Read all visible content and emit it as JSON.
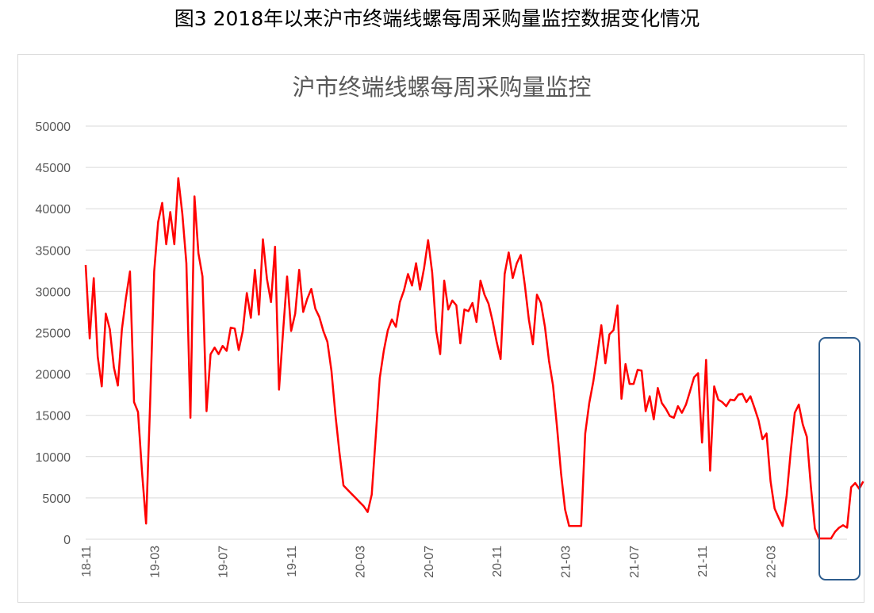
{
  "caption": "图3  2018年以来沪市终端线螺每周采购量监控数据变化情况",
  "chart_data": {
    "type": "line",
    "title": "沪市终端线螺每周采购量监控",
    "x_tick_labels": [
      "18-11",
      "19-03",
      "19-07",
      "19-11",
      "20-03",
      "20-07",
      "20-11",
      "21-03",
      "21-07",
      "21-11",
      "22-03"
    ],
    "x_tick_week_index": [
      0,
      17,
      34,
      51,
      68,
      85,
      102,
      119,
      136,
      153,
      170
    ],
    "ylim": [
      0,
      50000
    ],
    "yticks": [
      0,
      5000,
      10000,
      15000,
      20000,
      25000,
      30000,
      35000,
      40000,
      45000,
      50000
    ],
    "grid": true,
    "legend": "none",
    "color": "#ff0000",
    "series": [
      {
        "values": [
          33200,
          24300,
          31600,
          22100,
          18500,
          27300,
          25400,
          20800,
          18600,
          25400,
          29200,
          32400,
          16600,
          15400,
          8100,
          1900,
          16500,
          32400,
          38400,
          40700,
          35700,
          39600,
          35700,
          43700,
          39400,
          33400,
          14700,
          41500,
          34600,
          31800,
          15500,
          22400,
          23200,
          22400,
          23400,
          22800,
          25600,
          25500,
          22900,
          25200,
          29800,
          26800,
          32600,
          27200,
          36300,
          31500,
          28700,
          35400,
          18100,
          25100,
          31800,
          25200,
          27300,
          32600,
          27500,
          29100,
          30300,
          27900,
          26900,
          25200,
          23900,
          20400,
          15000,
          10500,
          6500,
          6000,
          5500,
          5000,
          4500,
          4000,
          3300,
          5400,
          12500,
          19500,
          22800,
          25300,
          26600,
          25700,
          28700,
          30100,
          32100,
          30700,
          33400,
          30200,
          32800,
          36200,
          32300,
          25200,
          22400,
          31300,
          27800,
          28900,
          28300,
          23700,
          27800,
          27600,
          28600,
          26300,
          31300,
          29600,
          28500,
          26400,
          23900,
          21800,
          32100,
          34700,
          31600,
          33400,
          34400,
          30800,
          26600,
          23600,
          29600,
          28600,
          25700,
          21600,
          18600,
          13500,
          8000,
          3600,
          1600,
          1600,
          1600,
          1600,
          12800,
          16500,
          19100,
          22400,
          25900,
          21300,
          24800,
          25300,
          28300,
          17000,
          21200,
          18800,
          18800,
          20500,
          20400,
          15500,
          17300,
          14500,
          18300,
          16500,
          15800,
          14900,
          14700,
          16100,
          15300,
          16300,
          17900,
          19600,
          20100,
          11700,
          21700,
          8300,
          18500,
          16900,
          16600,
          16100,
          16900,
          16800,
          17500,
          17600,
          16600,
          17300,
          15900,
          14400,
          12100,
          12800,
          7000,
          3700,
          2600,
          1600,
          5300,
          10600,
          15300,
          16300,
          13900,
          12400,
          6400,
          1300,
          100,
          100,
          100,
          100,
          900,
          1400,
          1700,
          1400,
          6300,
          6800,
          6100,
          7000
        ]
      }
    ]
  }
}
